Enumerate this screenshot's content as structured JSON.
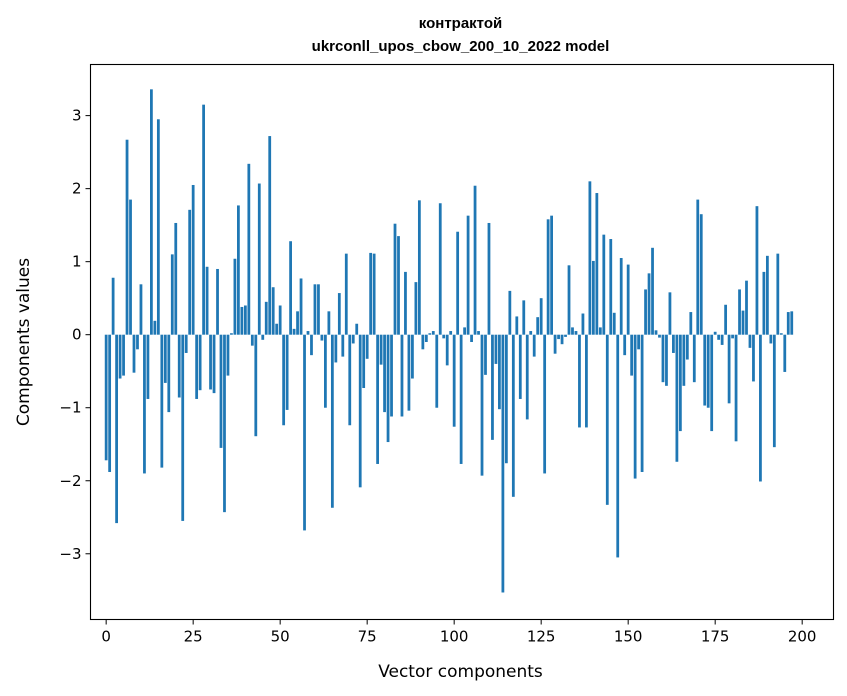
{
  "colors": {
    "bar": "#1f77b4",
    "axis": "#000000"
  },
  "chart_data": {
    "type": "bar",
    "title": "контрактой",
    "subtitle": "ukrconll_upos_cbow_200_10_2022 model",
    "xlabel": "Vector components",
    "ylabel": "Components values",
    "xlim": [
      -4.5,
      209
    ],
    "ylim": [
      -3.9,
      3.7
    ],
    "grid": false,
    "x_ticks": [
      0,
      25,
      50,
      75,
      100,
      125,
      150,
      175,
      200
    ],
    "x_tick_labels": [
      "0",
      "25",
      "50",
      "75",
      "100",
      "125",
      "150",
      "175",
      "200"
    ],
    "y_ticks": [
      -3,
      -2,
      -1,
      0,
      1,
      2,
      3
    ],
    "y_tick_labels": [
      "−3",
      "−2",
      "−1",
      "0",
      "1",
      "2",
      "3"
    ],
    "values": [
      -1.72,
      -1.88,
      0.78,
      -2.58,
      -0.6,
      -0.56,
      2.67,
      1.85,
      -0.52,
      -0.2,
      0.69,
      -1.9,
      -0.88,
      3.36,
      0.19,
      2.95,
      -1.82,
      -0.66,
      -1.06,
      1.1,
      1.53,
      -0.86,
      -2.55,
      -0.25,
      1.71,
      2.05,
      -0.88,
      -0.76,
      3.15,
      0.93,
      -0.75,
      -0.8,
      0.9,
      -1.55,
      -2.43,
      -0.56,
      0.02,
      1.04,
      1.77,
      0.38,
      0.4,
      2.34,
      -0.15,
      -1.39,
      2.07,
      -0.07,
      0.45,
      2.72,
      0.65,
      0.15,
      0.4,
      -1.24,
      -1.03,
      1.28,
      0.08,
      0.32,
      0.77,
      -2.68,
      0.05,
      -0.28,
      0.69,
      0.69,
      -0.08,
      -1.0,
      0.32,
      -2.37,
      -0.38,
      0.57,
      -0.3,
      1.11,
      -1.24,
      -0.12,
      0.15,
      -2.09,
      -0.73,
      -0.33,
      1.12,
      1.11,
      -1.77,
      -0.41,
      -1.06,
      -1.47,
      -1.12,
      1.52,
      1.35,
      -1.12,
      0.86,
      -1.04,
      -0.6,
      0.72,
      1.84,
      -0.2,
      -0.1,
      0.02,
      0.05,
      -1.0,
      1.8,
      -0.05,
      -0.42,
      0.05,
      -1.26,
      1.41,
      -1.77,
      0.1,
      1.63,
      -0.1,
      2.04,
      0.05,
      -1.93,
      -0.55,
      1.53,
      -1.44,
      -0.4,
      -1.02,
      -3.53,
      -1.76,
      0.6,
      -2.22,
      0.25,
      -0.88,
      0.47,
      -1.16,
      0.05,
      -0.3,
      0.24,
      0.5,
      -1.9,
      1.58,
      1.63,
      -0.26,
      -0.06,
      -0.13,
      -0.03,
      0.95,
      0.1,
      0.05,
      -1.27,
      0.29,
      -1.27,
      2.1,
      1.01,
      1.94,
      0.1,
      1.37,
      -2.33,
      1.31,
      0.3,
      -3.05,
      1.05,
      -0.28,
      0.96,
      -0.56,
      -1.97,
      -0.2,
      -1.88,
      0.62,
      0.84,
      1.19,
      0.06,
      -0.04,
      -0.65,
      -0.7,
      0.58,
      -0.25,
      -1.74,
      -1.32,
      -0.7,
      -0.34,
      0.31,
      -0.65,
      1.85,
      1.65,
      -0.97,
      -1.0,
      -1.32,
      0.04,
      -0.07,
      -0.14,
      0.41,
      -0.94,
      -0.05,
      -1.46,
      0.62,
      0.33,
      0.74,
      -0.18,
      -0.64,
      1.76,
      -2.01,
      0.86,
      1.08,
      -0.12,
      -1.54,
      1.11,
      0.02,
      -0.51,
      0.31,
      0.32
    ]
  }
}
